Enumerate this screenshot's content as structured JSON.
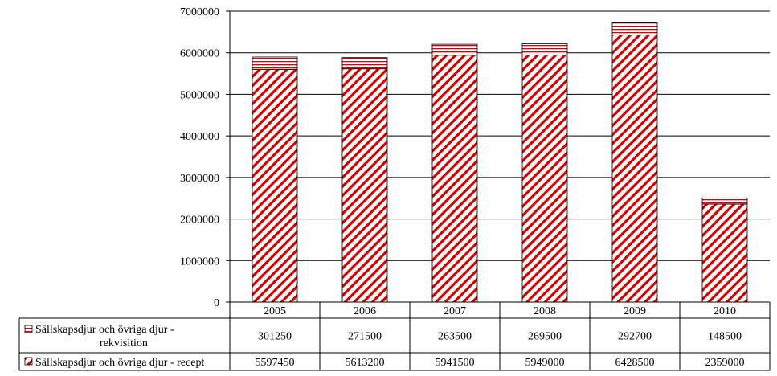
{
  "chart_data": {
    "type": "bar",
    "stacked": true,
    "categories": [
      "2005",
      "2006",
      "2007",
      "2008",
      "2009",
      "2010"
    ],
    "series": [
      {
        "name": "Sällskapsdjur och övriga djur - recept",
        "name_lines": [
          "Sällskapsdjur och övriga djur - recept"
        ],
        "values": [
          5597450,
          5613200,
          5941500,
          5949000,
          6428500,
          2359000
        ],
        "pattern": "diagonal-hatch",
        "color": "#d00000"
      },
      {
        "name": "Sällskapsdjur och övriga djur - rekvisition",
        "name_lines": [
          "Sällskapsdjur och övriga djur -",
          "rekvisition"
        ],
        "values": [
          301250,
          271500,
          263500,
          269500,
          292700,
          148500
        ],
        "pattern": "horizontal-hatch",
        "color": "#d00000"
      }
    ],
    "y_ticks": [
      "0",
      "1000000",
      "2000000",
      "3000000",
      "4000000",
      "5000000",
      "6000000",
      "7000000"
    ],
    "ylim": [
      0,
      7000000
    ],
    "grid": true,
    "legend": "data-table",
    "title": "",
    "xlabel": "",
    "ylabel": ""
  }
}
